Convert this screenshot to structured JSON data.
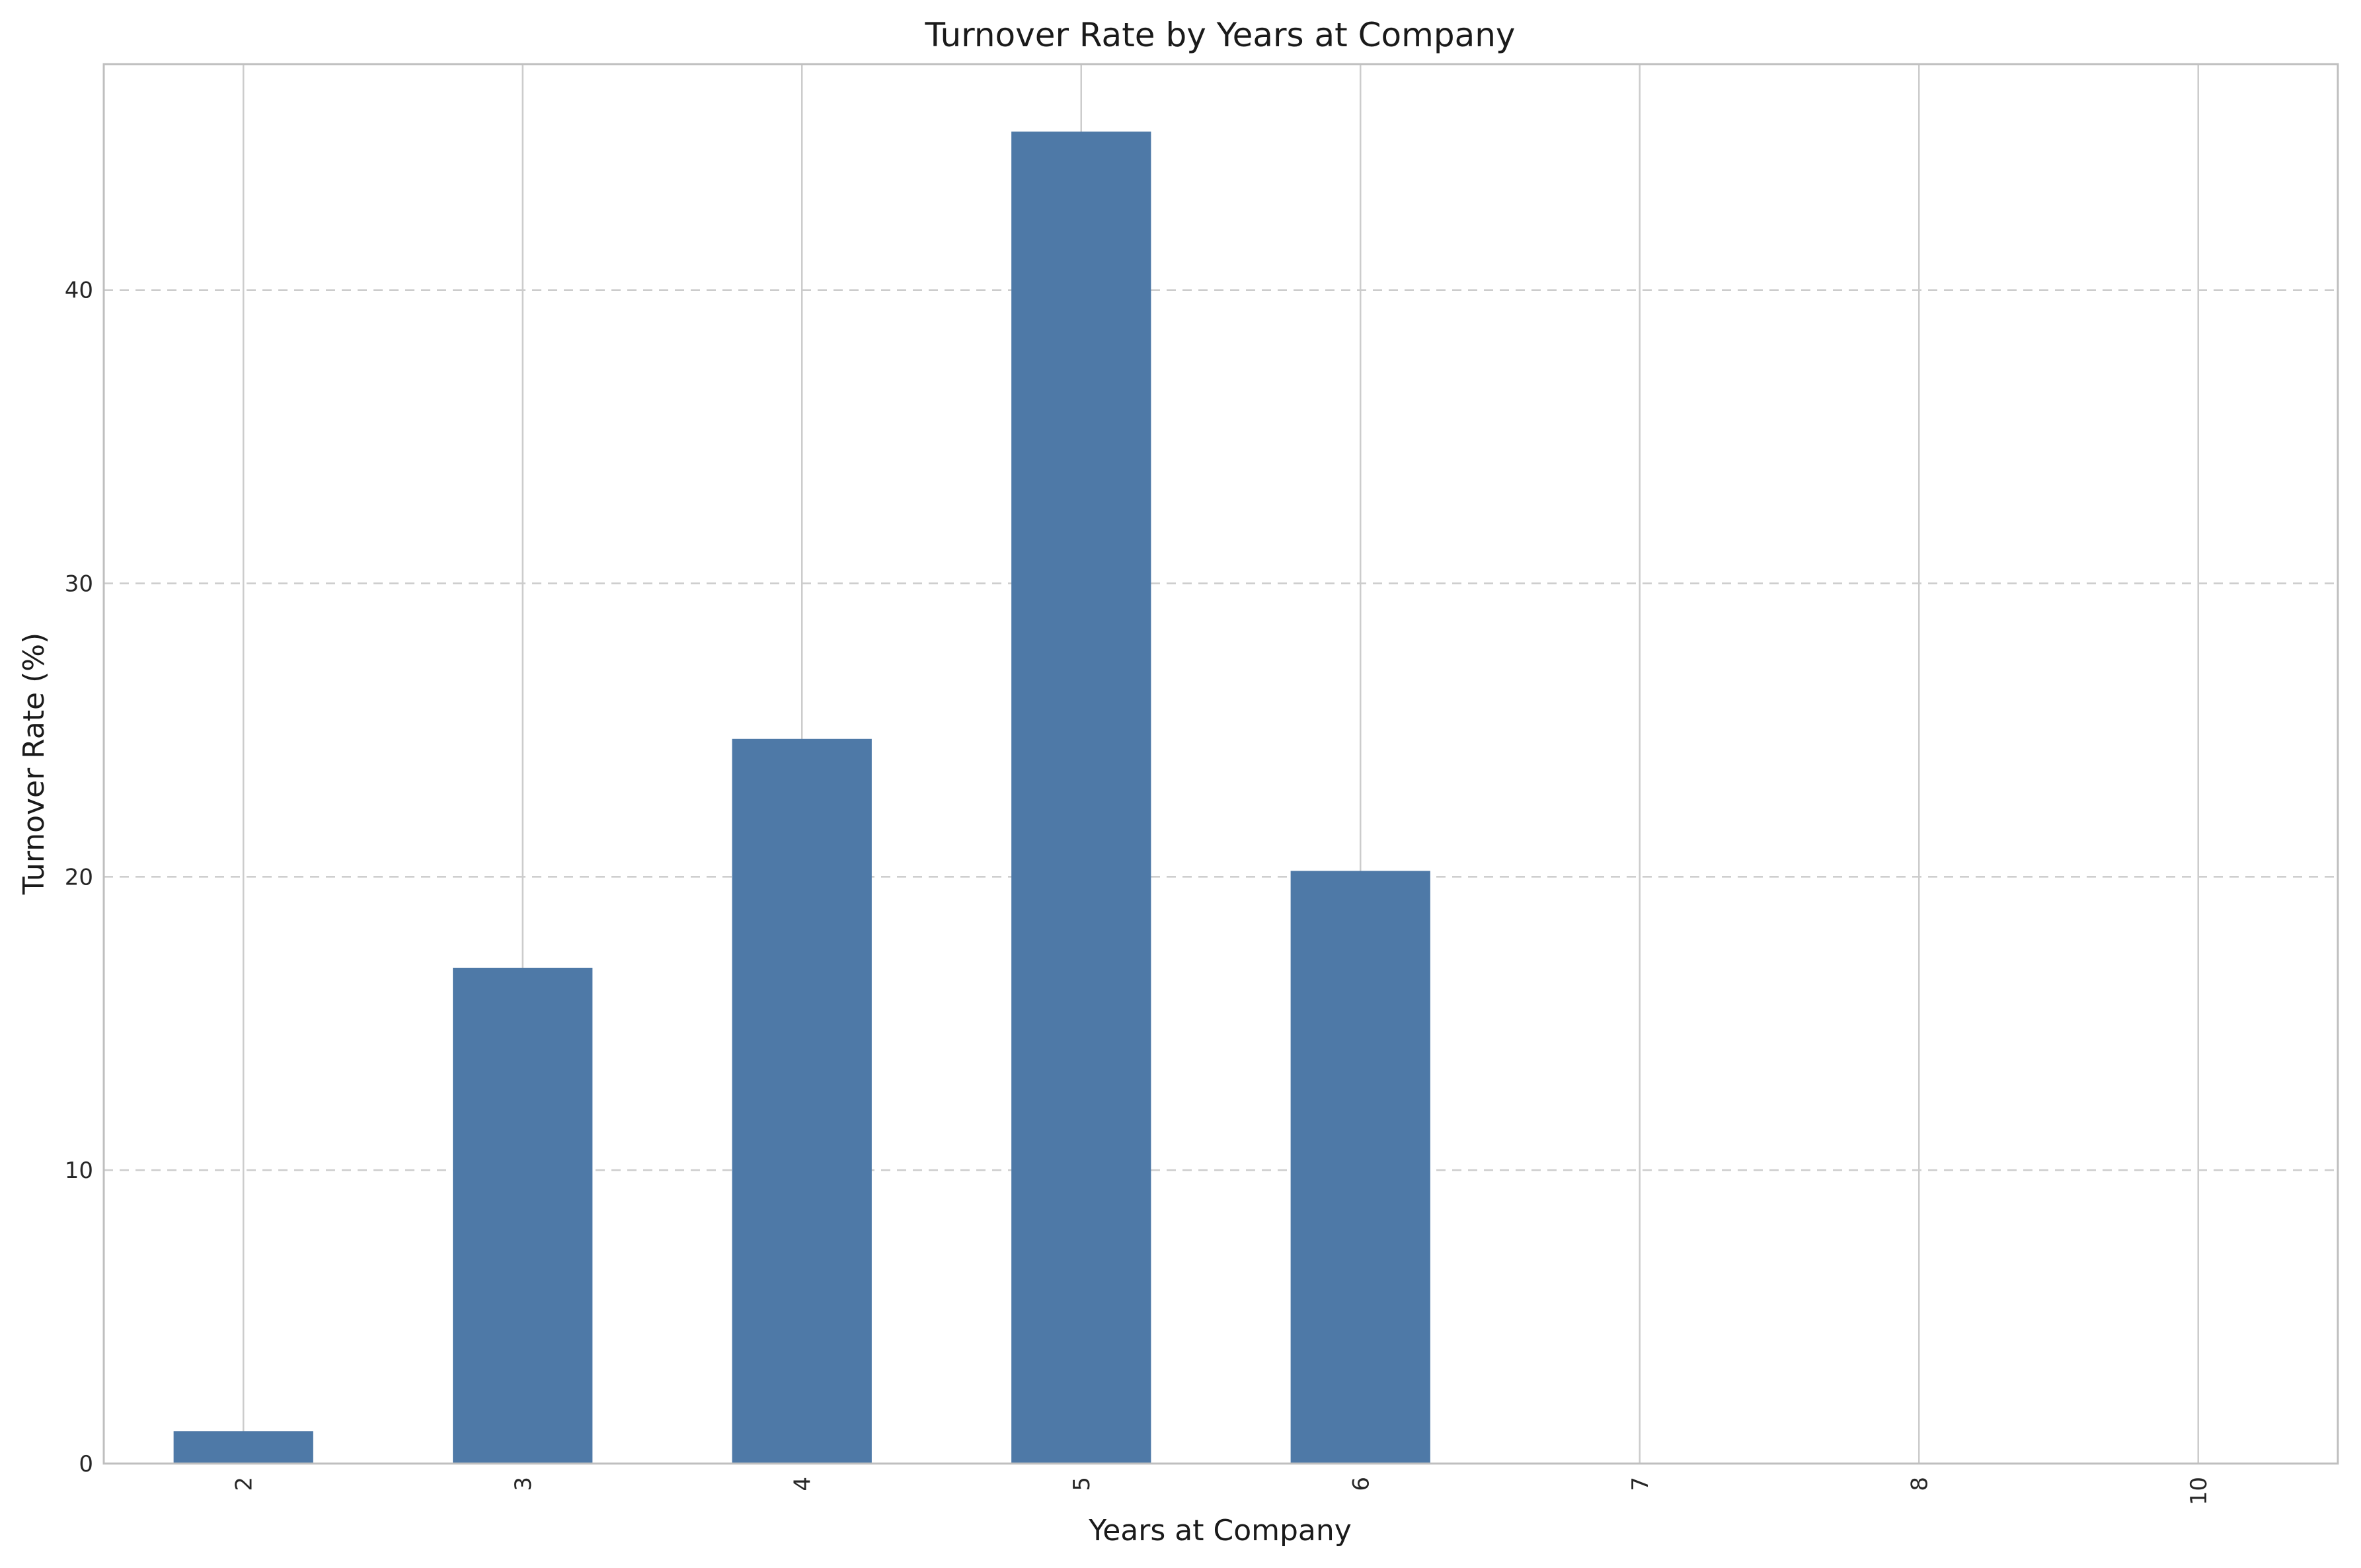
{
  "chart_data": {
    "type": "bar",
    "title": "Turnover Rate by Years at Company",
    "xlabel": "Years at Company",
    "ylabel": "Turnover Rate (%)",
    "categories": [
      "2",
      "3",
      "4",
      "5",
      "6",
      "7",
      "8",
      "10"
    ],
    "values": [
      1.1,
      16.9,
      24.7,
      45.4,
      20.2,
      0,
      0,
      0
    ],
    "ylim": [
      0,
      47.7
    ],
    "yticks": [
      0,
      10,
      20,
      30,
      40
    ],
    "grid": {
      "x": true,
      "y": true,
      "y_style": "dashed"
    },
    "bar_color": "#4e79a7",
    "grid_color": "#cccccc",
    "frame_color": "#bfbfbf"
  }
}
